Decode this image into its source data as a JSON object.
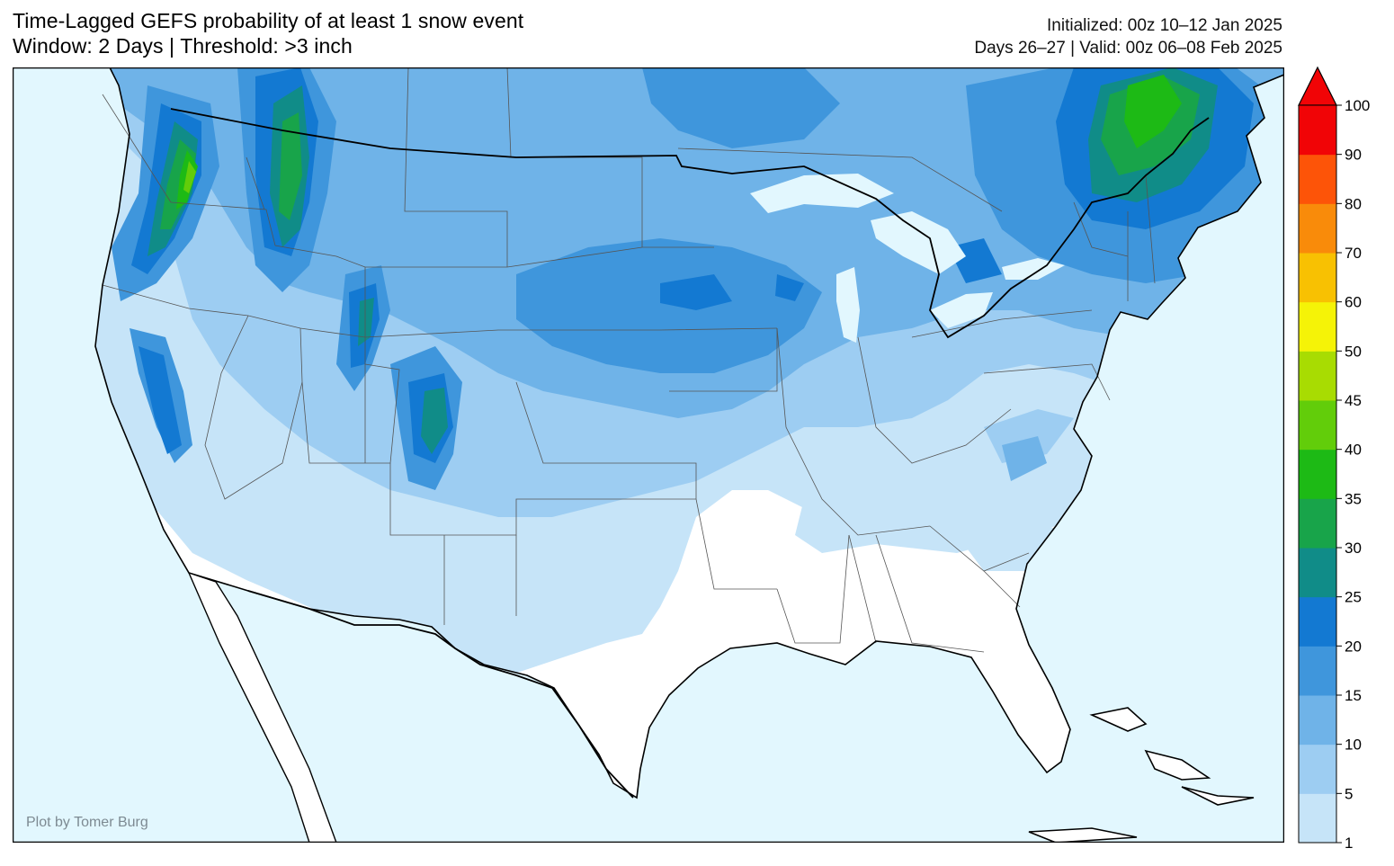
{
  "header": {
    "title_line1": "Time-Lagged GEFS probability of at least 1 snow event",
    "title_line2": "Window: 2 Days | Threshold: >3 inch",
    "initialized": "Initialized: 00z 10–12 Jan 2025",
    "valid": "Days 26–27 | Valid: 00z 06–08 Feb 2025"
  },
  "credit": "Plot by Tomer Burg",
  "colorbar": {
    "ticks": [
      "1",
      "5",
      "10",
      "15",
      "20",
      "25",
      "30",
      "35",
      "40",
      "45",
      "50",
      "60",
      "70",
      "80",
      "90",
      "100"
    ],
    "colors": [
      "#c6e4f8",
      "#9dcdf2",
      "#6fb3e8",
      "#3f96dc",
      "#1379d2",
      "#108c88",
      "#18a44a",
      "#1dba15",
      "#62cd0a",
      "#a8dc02",
      "#f5f307",
      "#f8c102",
      "#f98b0a",
      "#fd5408",
      "#f10406"
    ],
    "extend_color": "#f10406"
  },
  "map": {
    "ocean_color": "#e2f7fe",
    "land_color": "#ffffff"
  }
}
